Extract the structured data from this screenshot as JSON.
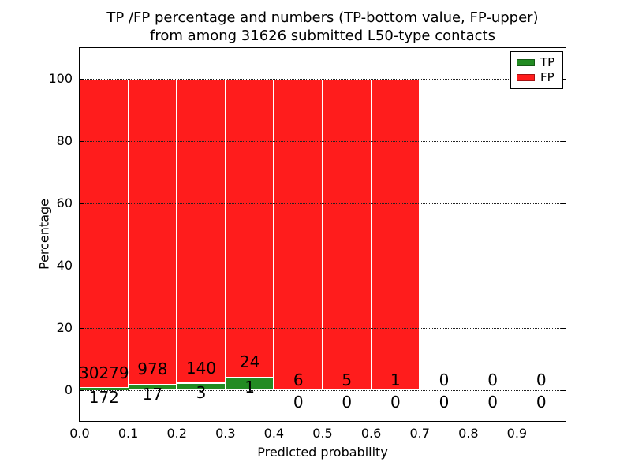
{
  "header": {
    "title_line1": "TP /FP percentage and numbers (TP-bottom value, FP-upper)",
    "title_line2": "from among 31626 submitted L50-type contacts"
  },
  "colors": {
    "tp": "#228B22",
    "fp": "#ff1c1c",
    "bar_edge": "#ffffff",
    "grid": "#222222",
    "text": "#000000",
    "background": "#ffffff"
  },
  "chart_data": {
    "type": "bar",
    "stacked": true,
    "title": "TP /FP percentage and numbers (TP-bottom value, FP-upper) from among 31626 submitted L50-type contacts",
    "xlabel": "Predicted probability",
    "ylabel": "Percentage",
    "xlim": [
      0.0,
      1.0
    ],
    "ylim": [
      -10,
      110
    ],
    "x_ticks": [
      "0.0",
      "0.1",
      "0.2",
      "0.3",
      "0.4",
      "0.5",
      "0.6",
      "0.7",
      "0.8",
      "0.9"
    ],
    "y_ticks": [
      0,
      20,
      40,
      60,
      80,
      100
    ],
    "grid": "dotted",
    "bin_width": 0.1,
    "total_contacts": 31626,
    "legend": {
      "position": "upper right",
      "entries": [
        {
          "label": "TP",
          "color": "#228B22"
        },
        {
          "label": "FP",
          "color": "#ff1c1c"
        }
      ]
    },
    "series": [
      {
        "name": "TP",
        "counts": [
          172,
          17,
          3,
          1,
          0,
          0,
          0,
          0,
          0,
          0
        ]
      },
      {
        "name": "FP",
        "counts": [
          30279,
          978,
          140,
          24,
          6,
          5,
          1,
          0,
          0,
          0
        ]
      }
    ],
    "bins": [
      {
        "x0": 0.0,
        "x1": 0.1,
        "tp": 172,
        "fp": 30279,
        "tp_pct": 0.565,
        "fp_pct": 99.435
      },
      {
        "x0": 0.1,
        "x1": 0.2,
        "tp": 17,
        "fp": 978,
        "tp_pct": 1.709,
        "fp_pct": 98.291
      },
      {
        "x0": 0.2,
        "x1": 0.3,
        "tp": 3,
        "fp": 140,
        "tp_pct": 2.098,
        "fp_pct": 97.902
      },
      {
        "x0": 0.3,
        "x1": 0.4,
        "tp": 1,
        "fp": 24,
        "tp_pct": 4.0,
        "fp_pct": 96.0
      },
      {
        "x0": 0.4,
        "x1": 0.5,
        "tp": 0,
        "fp": 6,
        "tp_pct": 0,
        "fp_pct": 100
      },
      {
        "x0": 0.5,
        "x1": 0.6,
        "tp": 0,
        "fp": 5,
        "tp_pct": 0,
        "fp_pct": 100
      },
      {
        "x0": 0.6,
        "x1": 0.7,
        "tp": 0,
        "fp": 1,
        "tp_pct": 0,
        "fp_pct": 100
      },
      {
        "x0": 0.7,
        "x1": 0.8,
        "tp": 0,
        "fp": 0,
        "tp_pct": 0,
        "fp_pct": 0
      },
      {
        "x0": 0.8,
        "x1": 0.9,
        "tp": 0,
        "fp": 0,
        "tp_pct": 0,
        "fp_pct": 0
      },
      {
        "x0": 0.9,
        "x1": 1.0,
        "tp": 0,
        "fp": 0,
        "tp_pct": 0,
        "fp_pct": 0
      }
    ]
  }
}
